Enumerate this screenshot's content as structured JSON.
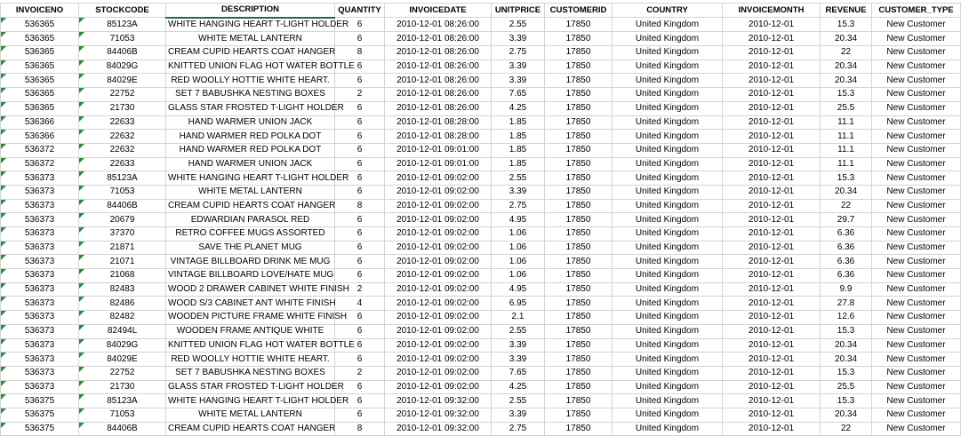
{
  "columns": [
    "INVOICENO",
    "STOCKCODE",
    "DESCRIPTION",
    "QUANTITY",
    "INVOICEDATE",
    "UNITPRICE",
    "CUSTOMERID",
    "COUNTRY",
    "INVOICEMONTH",
    "REVENUE",
    "CUSTOMER_TYPE"
  ],
  "rows": [
    [
      "536365",
      "85123A",
      "WHITE HANGING HEART T-LIGHT HOLDER",
      "6",
      "2010-12-01 08:26:00",
      "2.55",
      "17850",
      "United Kingdom",
      "2010-12-01",
      "15.3",
      "New Customer"
    ],
    [
      "536365",
      "71053",
      "WHITE METAL LANTERN",
      "6",
      "2010-12-01 08:26:00",
      "3.39",
      "17850",
      "United Kingdom",
      "2010-12-01",
      "20.34",
      "New Customer"
    ],
    [
      "536365",
      "84406B",
      "CREAM CUPID HEARTS COAT HANGER",
      "8",
      "2010-12-01 08:26:00",
      "2.75",
      "17850",
      "United Kingdom",
      "2010-12-01",
      "22",
      "New Customer"
    ],
    [
      "536365",
      "84029G",
      "KNITTED UNION FLAG HOT WATER BOTTLE",
      "6",
      "2010-12-01 08:26:00",
      "3.39",
      "17850",
      "United Kingdom",
      "2010-12-01",
      "20.34",
      "New Customer"
    ],
    [
      "536365",
      "84029E",
      "RED WOOLLY HOTTIE WHITE HEART.",
      "6",
      "2010-12-01 08:26:00",
      "3.39",
      "17850",
      "United Kingdom",
      "2010-12-01",
      "20.34",
      "New Customer"
    ],
    [
      "536365",
      "22752",
      "SET 7 BABUSHKA NESTING BOXES",
      "2",
      "2010-12-01 08:26:00",
      "7.65",
      "17850",
      "United Kingdom",
      "2010-12-01",
      "15.3",
      "New Customer"
    ],
    [
      "536365",
      "21730",
      "GLASS STAR FROSTED T-LIGHT HOLDER",
      "6",
      "2010-12-01 08:26:00",
      "4.25",
      "17850",
      "United Kingdom",
      "2010-12-01",
      "25.5",
      "New Customer"
    ],
    [
      "536366",
      "22633",
      "HAND WARMER UNION JACK",
      "6",
      "2010-12-01 08:28:00",
      "1.85",
      "17850",
      "United Kingdom",
      "2010-12-01",
      "11.1",
      "New Customer"
    ],
    [
      "536366",
      "22632",
      "HAND WARMER RED POLKA DOT",
      "6",
      "2010-12-01 08:28:00",
      "1.85",
      "17850",
      "United Kingdom",
      "2010-12-01",
      "11.1",
      "New Customer"
    ],
    [
      "536372",
      "22632",
      "HAND WARMER RED POLKA DOT",
      "6",
      "2010-12-01 09:01:00",
      "1.85",
      "17850",
      "United Kingdom",
      "2010-12-01",
      "11.1",
      "New Customer"
    ],
    [
      "536372",
      "22633",
      "HAND WARMER UNION JACK",
      "6",
      "2010-12-01 09:01:00",
      "1.85",
      "17850",
      "United Kingdom",
      "2010-12-01",
      "11.1",
      "New Customer"
    ],
    [
      "536373",
      "85123A",
      "WHITE HANGING HEART T-LIGHT HOLDER",
      "6",
      "2010-12-01 09:02:00",
      "2.55",
      "17850",
      "United Kingdom",
      "2010-12-01",
      "15.3",
      "New Customer"
    ],
    [
      "536373",
      "71053",
      "WHITE METAL LANTERN",
      "6",
      "2010-12-01 09:02:00",
      "3.39",
      "17850",
      "United Kingdom",
      "2010-12-01",
      "20.34",
      "New Customer"
    ],
    [
      "536373",
      "84406B",
      "CREAM CUPID HEARTS COAT HANGER",
      "8",
      "2010-12-01 09:02:00",
      "2.75",
      "17850",
      "United Kingdom",
      "2010-12-01",
      "22",
      "New Customer"
    ],
    [
      "536373",
      "20679",
      "EDWARDIAN PARASOL RED",
      "6",
      "2010-12-01 09:02:00",
      "4.95",
      "17850",
      "United Kingdom",
      "2010-12-01",
      "29.7",
      "New Customer"
    ],
    [
      "536373",
      "37370",
      "RETRO COFFEE MUGS ASSORTED",
      "6",
      "2010-12-01 09:02:00",
      "1.06",
      "17850",
      "United Kingdom",
      "2010-12-01",
      "6.36",
      "New Customer"
    ],
    [
      "536373",
      "21871",
      "SAVE THE PLANET MUG",
      "6",
      "2010-12-01 09:02:00",
      "1.06",
      "17850",
      "United Kingdom",
      "2010-12-01",
      "6.36",
      "New Customer"
    ],
    [
      "536373",
      "21071",
      "VINTAGE BILLBOARD DRINK ME MUG",
      "6",
      "2010-12-01 09:02:00",
      "1.06",
      "17850",
      "United Kingdom",
      "2010-12-01",
      "6.36",
      "New Customer"
    ],
    [
      "536373",
      "21068",
      "VINTAGE BILLBOARD LOVE/HATE MUG",
      "6",
      "2010-12-01 09:02:00",
      "1.06",
      "17850",
      "United Kingdom",
      "2010-12-01",
      "6.36",
      "New Customer"
    ],
    [
      "536373",
      "82483",
      "WOOD 2 DRAWER CABINET WHITE FINISH",
      "2",
      "2010-12-01 09:02:00",
      "4.95",
      "17850",
      "United Kingdom",
      "2010-12-01",
      "9.9",
      "New Customer"
    ],
    [
      "536373",
      "82486",
      "WOOD S/3 CABINET ANT WHITE FINISH",
      "4",
      "2010-12-01 09:02:00",
      "6.95",
      "17850",
      "United Kingdom",
      "2010-12-01",
      "27.8",
      "New Customer"
    ],
    [
      "536373",
      "82482",
      "WOODEN PICTURE FRAME WHITE FINISH",
      "6",
      "2010-12-01 09:02:00",
      "2.1",
      "17850",
      "United Kingdom",
      "2010-12-01",
      "12.6",
      "New Customer"
    ],
    [
      "536373",
      "82494L",
      "WOODEN FRAME ANTIQUE WHITE",
      "6",
      "2010-12-01 09:02:00",
      "2.55",
      "17850",
      "United Kingdom",
      "2010-12-01",
      "15.3",
      "New Customer"
    ],
    [
      "536373",
      "84029G",
      "KNITTED UNION FLAG HOT WATER BOTTLE",
      "6",
      "2010-12-01 09:02:00",
      "3.39",
      "17850",
      "United Kingdom",
      "2010-12-01",
      "20.34",
      "New Customer"
    ],
    [
      "536373",
      "84029E",
      "RED WOOLLY HOTTIE WHITE HEART.",
      "6",
      "2010-12-01 09:02:00",
      "3.39",
      "17850",
      "United Kingdom",
      "2010-12-01",
      "20.34",
      "New Customer"
    ],
    [
      "536373",
      "22752",
      "SET 7 BABUSHKA NESTING BOXES",
      "2",
      "2010-12-01 09:02:00",
      "7.65",
      "17850",
      "United Kingdom",
      "2010-12-01",
      "15.3",
      "New Customer"
    ],
    [
      "536373",
      "21730",
      "GLASS STAR FROSTED T-LIGHT HOLDER",
      "6",
      "2010-12-01 09:02:00",
      "4.25",
      "17850",
      "United Kingdom",
      "2010-12-01",
      "25.5",
      "New Customer"
    ],
    [
      "536375",
      "85123A",
      "WHITE HANGING HEART T-LIGHT HOLDER",
      "6",
      "2010-12-01 09:32:00",
      "2.55",
      "17850",
      "United Kingdom",
      "2010-12-01",
      "15.3",
      "New Customer"
    ],
    [
      "536375",
      "71053",
      "WHITE METAL LANTERN",
      "6",
      "2010-12-01 09:32:00",
      "3.39",
      "17850",
      "United Kingdom",
      "2010-12-01",
      "20.34",
      "New Customer"
    ],
    [
      "536375",
      "84406B",
      "CREAM CUPID HEARTS COAT HANGER",
      "8",
      "2010-12-01 09:32:00",
      "2.75",
      "17850",
      "United Kingdom",
      "2010-12-01",
      "22",
      "New Customer"
    ]
  ],
  "flag_color": "#2e8b3e"
}
